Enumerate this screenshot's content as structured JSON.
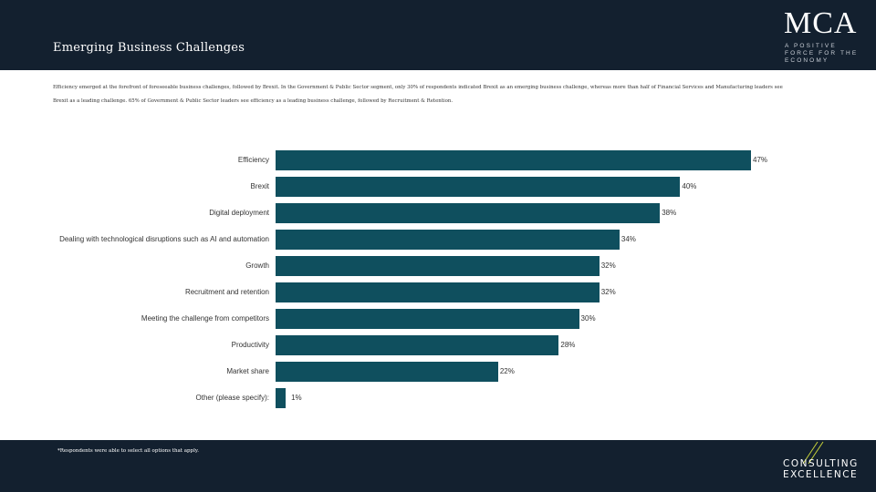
{
  "header": {
    "title": "Emerging Business Challenges",
    "logo_text": "MCA",
    "logo_tagline": "A POSITIVE FORCE FOR THE ECONOMY"
  },
  "intro": "Efficiency emerged at the forefront of foreseeable business challenges, followed by Brexit. In the Government & Public Sector segment, only 30% of respondents indicated Brexit as an emerging business challenge, whereas more than half of Financial Services and Manufacturing leaders see Brexit as a leading challenge. 65% of Government & Public Sector leaders see efficiency as a leading business challenge, followed by Recruitment & Retention.",
  "chart_data": {
    "type": "bar",
    "orientation": "horizontal",
    "categories": [
      "Efficiency",
      "Brexit",
      "Digital deployment",
      "Dealing with technological disruptions such as AI and automation",
      "Growth",
      "Recruitment and retention",
      "Meeting the challenge from competitors",
      "Productivity",
      "Market share",
      "Other (please specify):"
    ],
    "values": [
      47,
      40,
      38,
      34,
      32,
      32,
      30,
      28,
      22,
      1
    ],
    "value_labels": [
      "47%",
      "40%",
      "38%",
      "34%",
      "32%",
      "32%",
      "30%",
      "28%",
      "22%",
      "1%"
    ],
    "unit": "%",
    "xlim": [
      0,
      47
    ],
    "bar_color": "#0f4f5e"
  },
  "footer": {
    "footnote": "*Respondents were able to select all options that apply.",
    "brand_line1": "CONSULTING",
    "brand_line2": "EXCELLENCE"
  }
}
